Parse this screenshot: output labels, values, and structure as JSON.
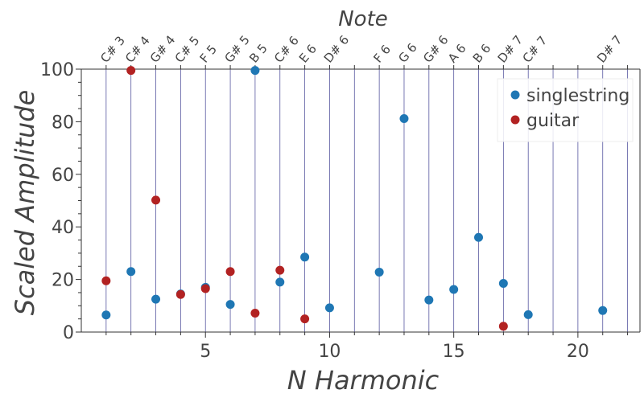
{
  "chart_data": {
    "type": "scatter",
    "title": "",
    "xlabel": "N Harmonic",
    "ylabel": "Scaled Amplitude",
    "top_axis_label": "Note",
    "xlim": [
      0,
      22.5
    ],
    "ylim": [
      0,
      100
    ],
    "x_ticks": [
      5,
      10,
      15,
      20
    ],
    "x_tick_labels": [
      "5",
      "10",
      "15",
      "20"
    ],
    "y_ticks": [
      0,
      20,
      40,
      60,
      80,
      100
    ],
    "y_tick_labels": [
      "0",
      "20",
      "40",
      "60",
      "80",
      "100"
    ],
    "notes": [
      {
        "harmonic": 1,
        "label": "C# 3"
      },
      {
        "harmonic": 2,
        "label": "C# 4"
      },
      {
        "harmonic": 3,
        "label": "G# 4"
      },
      {
        "harmonic": 4,
        "label": "C# 5"
      },
      {
        "harmonic": 5,
        "label": "F 5"
      },
      {
        "harmonic": 6,
        "label": "G# 5"
      },
      {
        "harmonic": 7,
        "label": "B 5"
      },
      {
        "harmonic": 8,
        "label": "C# 6"
      },
      {
        "harmonic": 9,
        "label": "E 6"
      },
      {
        "harmonic": 10,
        "label": "D# 6"
      },
      {
        "harmonic": 11,
        "label": ""
      },
      {
        "harmonic": 12,
        "label": "F 6"
      },
      {
        "harmonic": 13,
        "label": "G 6"
      },
      {
        "harmonic": 14,
        "label": "G# 6"
      },
      {
        "harmonic": 15,
        "label": "A 6"
      },
      {
        "harmonic": 16,
        "label": "B 6"
      },
      {
        "harmonic": 17,
        "label": "D# 7"
      },
      {
        "harmonic": 18,
        "label": "C# 7"
      },
      {
        "harmonic": 19,
        "label": ""
      },
      {
        "harmonic": 20,
        "label": ""
      },
      {
        "harmonic": 21,
        "label": "D# 7"
      },
      {
        "harmonic": 22,
        "label": ""
      }
    ],
    "series": [
      {
        "name": "singlestring",
        "color": "#1f77b4",
        "points": [
          {
            "x": 1,
            "y": 6.5
          },
          {
            "x": 2,
            "y": 23
          },
          {
            "x": 3,
            "y": 12.5
          },
          {
            "x": 4,
            "y": 14.5
          },
          {
            "x": 5,
            "y": 17
          },
          {
            "x": 6,
            "y": 10.5
          },
          {
            "x": 7,
            "y": 99.5
          },
          {
            "x": 8,
            "y": 19
          },
          {
            "x": 9,
            "y": 28.5
          },
          {
            "x": 10,
            "y": 9.2
          },
          {
            "x": 12,
            "y": 22.8
          },
          {
            "x": 13,
            "y": 81.2
          },
          {
            "x": 14,
            "y": 12.2
          },
          {
            "x": 15,
            "y": 16.2
          },
          {
            "x": 16,
            "y": 36
          },
          {
            "x": 17,
            "y": 18.5
          },
          {
            "x": 18,
            "y": 6.6
          },
          {
            "x": 21,
            "y": 8.2
          }
        ]
      },
      {
        "name": "guitar",
        "color": "#b22222",
        "points": [
          {
            "x": 1,
            "y": 19.5
          },
          {
            "x": 2,
            "y": 99.5
          },
          {
            "x": 3,
            "y": 50.2
          },
          {
            "x": 4,
            "y": 14.3
          },
          {
            "x": 5,
            "y": 16.5
          },
          {
            "x": 6,
            "y": 23
          },
          {
            "x": 7,
            "y": 7.2
          },
          {
            "x": 8,
            "y": 23.5
          },
          {
            "x": 9,
            "y": 5
          },
          {
            "x": 17,
            "y": 2.2
          }
        ]
      }
    ],
    "legend_position": "top-right",
    "grid": false,
    "vertical_note_lines": true,
    "line_color": "#3b3b8f"
  }
}
